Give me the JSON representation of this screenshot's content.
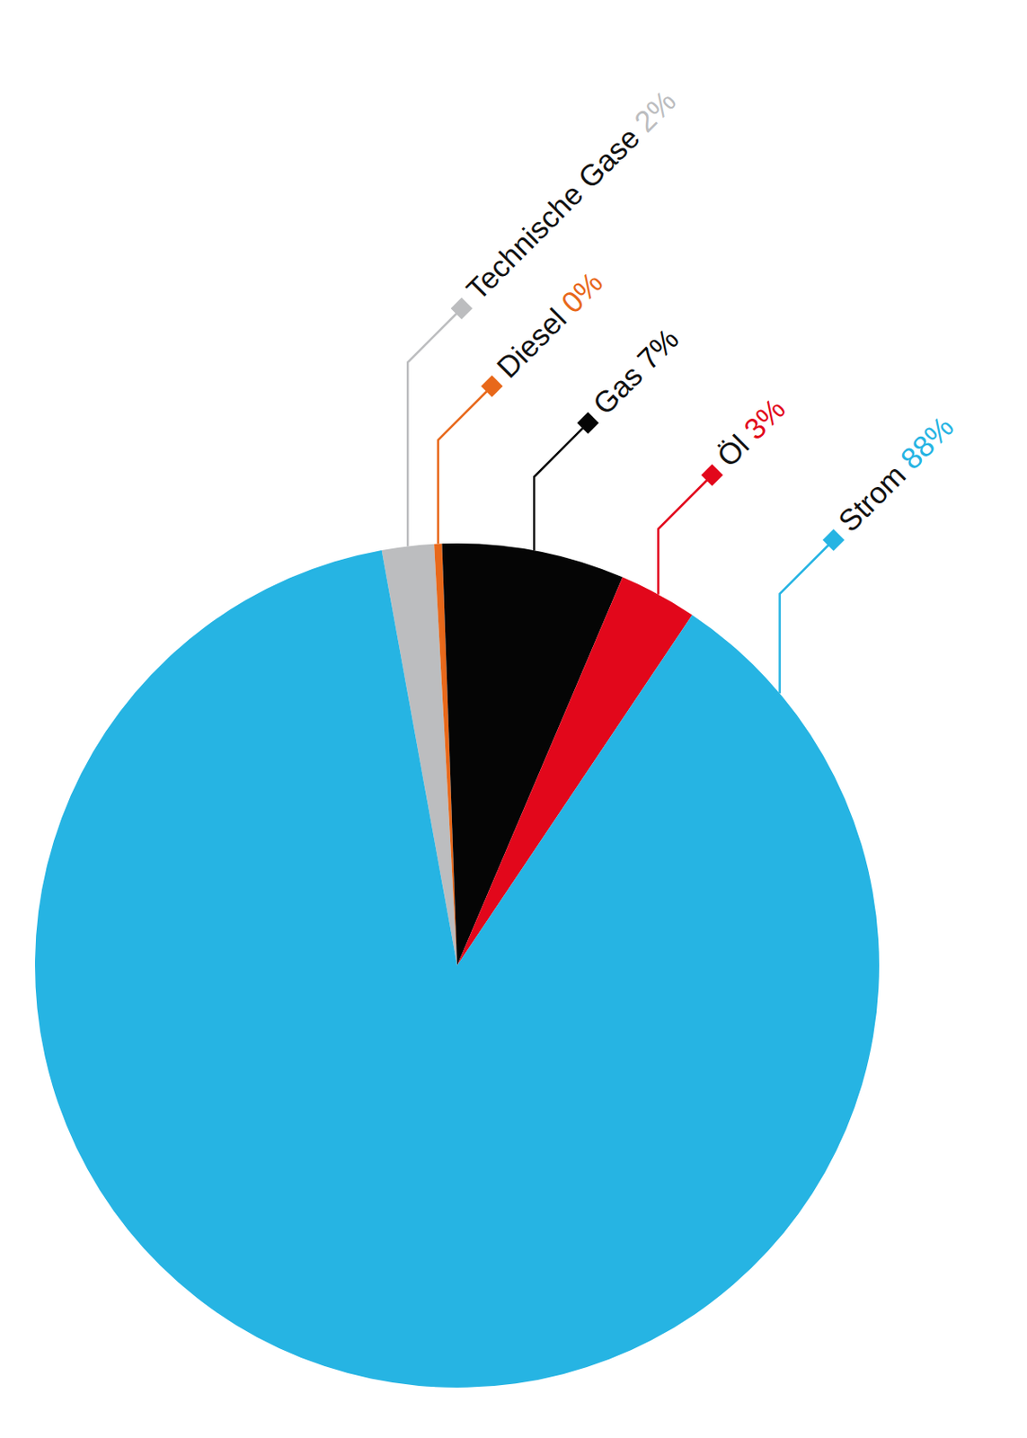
{
  "chart_data": {
    "type": "pie",
    "categories": [
      "Technische Gase",
      "Diesel",
      "Gas",
      "Öl",
      "Strom"
    ],
    "values": [
      2,
      0.3,
      7,
      3,
      88
    ],
    "value_labels": [
      "2%",
      "0%",
      "7%",
      "3%",
      "88%"
    ],
    "colors": [
      "#bcbdbf",
      "#e8681a",
      "#050505",
      "#e2071b",
      "#26b4e3"
    ],
    "data_labels": true
  }
}
